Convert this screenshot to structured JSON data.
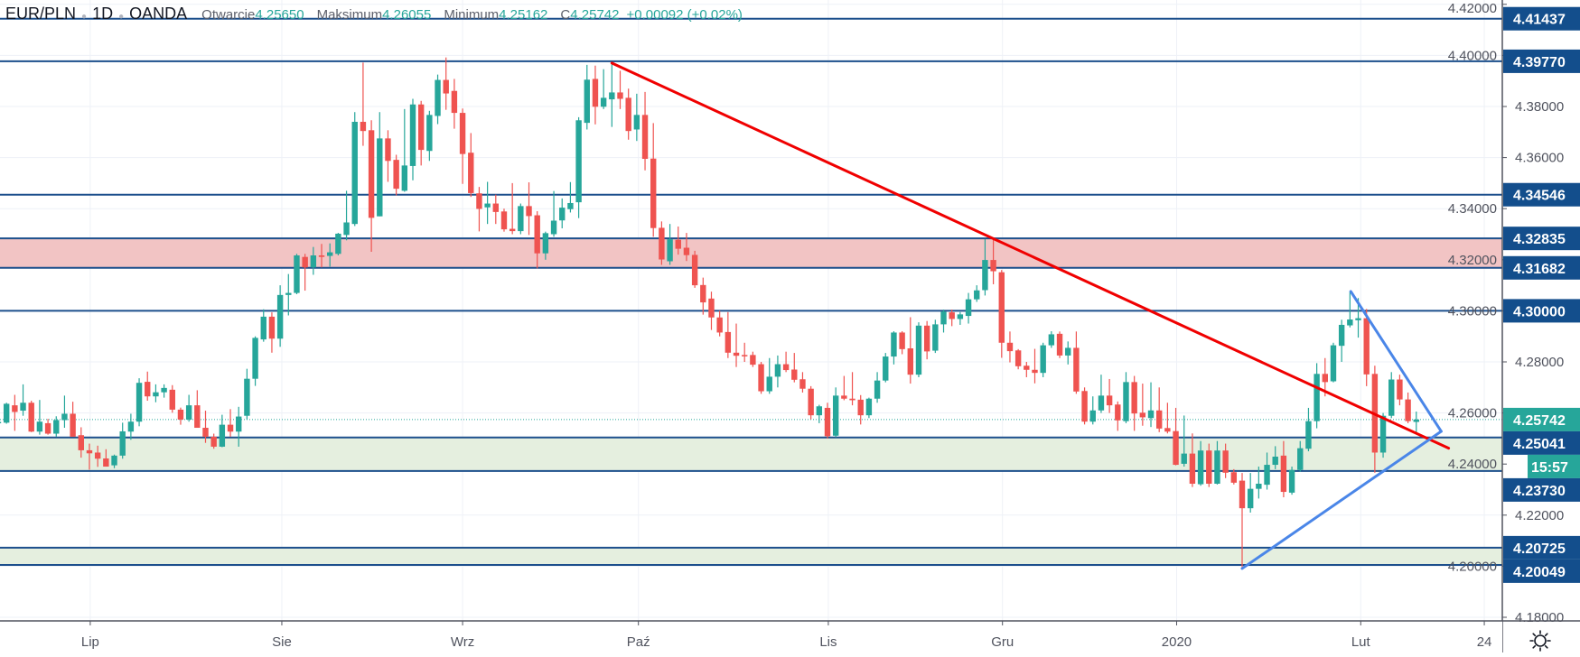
{
  "header": {
    "symbol": "EUR/PLN",
    "interval": "1D",
    "source": "OANDA",
    "open_label": "Otwarcie",
    "open": "4.25650",
    "high_label": "Maksimum",
    "high": "4.26055",
    "low_label": "Minimum",
    "low": "4.25162",
    "close_label": "C",
    "close": "4.25742",
    "change": "+0.00092 (+0.02%)"
  },
  "colors": {
    "up": "#26a69a",
    "down": "#ef5350",
    "level_line": "#1c4f8c",
    "level_label_bg": "#134e8c",
    "resistance_zone": "#f2c4c4",
    "support_zone": "#e5efdf",
    "trendline": "#f00000",
    "triangle": "#4a86e8",
    "grid": "#eef1f7"
  },
  "chart_data": {
    "type": "candlestick",
    "title": "EUR/PLN 1D OANDA",
    "ylim": [
      4.177,
      4.424
    ],
    "price_ticks": [
      "4.42000",
      "4.40000",
      "4.38000",
      "4.36000",
      "4.34000",
      "4.32000",
      "4.30000",
      "4.28000",
      "4.26000",
      "4.24000",
      "4.22000",
      "4.20000",
      "4.18000"
    ],
    "time_labels": [
      {
        "label": "Lip",
        "bar": 12.1
      },
      {
        "label": "Sie",
        "bar": 35.2
      },
      {
        "label": "Wrz",
        "bar": 57.0
      },
      {
        "label": "Paź",
        "bar": 78.2
      },
      {
        "label": "Lis",
        "bar": 101.1
      },
      {
        "label": "Gru",
        "bar": 122.1
      },
      {
        "label": "2020",
        "bar": 143.1
      },
      {
        "label": "Lut",
        "bar": 165.3
      },
      {
        "label": "24",
        "bar": 180.2
      }
    ],
    "levels": [
      "4.41437",
      "4.39770",
      "4.34546",
      "4.32835",
      "4.31682",
      "4.30000",
      "4.25041",
      "4.23730",
      "4.20725",
      "4.20049"
    ],
    "zones": [
      {
        "kind": "resistance",
        "from": 4.31682,
        "to": 4.32835
      },
      {
        "kind": "support",
        "from": 4.2373,
        "to": 4.25041
      },
      {
        "kind": "support",
        "from": 4.20049,
        "to": 4.20725
      }
    ],
    "current_price": "4.25742",
    "countdown": "15:57",
    "trendlines": [
      {
        "name": "downtrend",
        "color": "trendline",
        "points": [
          [
            75.0,
            4.397
          ],
          [
            175.9,
            4.2462
          ]
        ]
      },
      {
        "name": "triangle-lower",
        "color": "triangle",
        "points": [
          [
            151.0,
            4.1991
          ],
          [
            175.0,
            4.2528
          ]
        ]
      },
      {
        "name": "triangle-upper",
        "color": "triangle",
        "points": [
          [
            164.1,
            4.3076
          ],
          [
            175.0,
            4.2528
          ]
        ]
      }
    ],
    "ohlc_fields": [
      "open",
      "high",
      "low",
      "close"
    ],
    "ohlc": [
      [
        4.256,
        4.2575,
        4.2548,
        4.2565
      ],
      [
        4.2562,
        4.264,
        4.2558,
        4.2636
      ],
      [
        4.263,
        4.2671,
        4.253,
        4.2604
      ],
      [
        4.2609,
        4.2712,
        4.2589,
        4.264
      ],
      [
        4.264,
        4.2648,
        4.2525,
        4.2527
      ],
      [
        4.2527,
        4.2651,
        4.2515,
        4.2566
      ],
      [
        4.256,
        4.2577,
        4.2515,
        4.2519
      ],
      [
        4.2519,
        4.2587,
        4.2507,
        4.2572
      ],
      [
        4.2572,
        4.2668,
        4.2542,
        4.2597
      ],
      [
        4.2597,
        4.2644,
        4.2507,
        4.2507
      ],
      [
        4.2513,
        4.2544,
        4.2425,
        4.2454
      ],
      [
        4.2454,
        4.248,
        4.2378,
        4.2442
      ],
      [
        4.2445,
        4.2472,
        4.2389,
        4.2421
      ],
      [
        4.2422,
        4.2458,
        4.239,
        4.239
      ],
      [
        4.2395,
        4.2437,
        4.2384,
        4.2433
      ],
      [
        4.2433,
        4.2562,
        4.2421,
        4.2528
      ],
      [
        4.2527,
        4.2597,
        4.2495,
        4.2566
      ],
      [
        4.2566,
        4.2736,
        4.2548,
        4.2718
      ],
      [
        4.2722,
        4.2762,
        4.2648,
        4.2665
      ],
      [
        4.2665,
        4.2712,
        4.2642,
        4.2681
      ],
      [
        4.2681,
        4.2712,
        4.266,
        4.2698
      ],
      [
        4.2691,
        4.2709,
        4.2601,
        4.2613
      ],
      [
        4.2613,
        4.2621,
        4.2554,
        4.2574
      ],
      [
        4.2574,
        4.2671,
        4.2566,
        4.263
      ],
      [
        4.263,
        4.2689,
        4.2542,
        4.2542
      ],
      [
        4.2542,
        4.2609,
        4.2483,
        4.2507
      ],
      [
        4.2507,
        4.2519,
        4.246,
        4.2468
      ],
      [
        4.2468,
        4.2593,
        4.2466,
        4.2554
      ],
      [
        4.2554,
        4.2615,
        4.2507,
        4.2527
      ],
      [
        4.2527,
        4.2624,
        4.2468,
        4.2586
      ],
      [
        4.2589,
        4.2773,
        4.2574,
        4.2734
      ],
      [
        4.2734,
        4.29,
        4.2706,
        4.2894
      ],
      [
        4.2888,
        4.3006,
        4.2879,
        4.2977
      ],
      [
        4.2977,
        4.2994,
        4.2836,
        4.2891
      ],
      [
        4.2891,
        4.31,
        4.2859,
        4.3062
      ],
      [
        4.3062,
        4.3144,
        4.2982,
        4.307
      ],
      [
        4.307,
        4.3223,
        4.3065,
        4.3217
      ],
      [
        4.3211,
        4.3223,
        4.3079,
        4.317
      ],
      [
        4.317,
        4.325,
        4.3141,
        4.3217
      ],
      [
        4.3217,
        4.3262,
        4.317,
        4.3211
      ],
      [
        4.3215,
        4.3264,
        4.3173,
        4.3229
      ],
      [
        4.3223,
        4.3305,
        4.3217,
        4.3302
      ],
      [
        4.3297,
        4.347,
        4.3276,
        4.3346
      ],
      [
        4.334,
        4.3778,
        4.3332,
        4.374
      ],
      [
        4.374,
        4.3972,
        4.3646,
        4.3704
      ],
      [
        4.3707,
        4.3746,
        4.3231,
        4.3364
      ],
      [
        4.337,
        4.3778,
        4.337,
        4.3675
      ],
      [
        4.3675,
        4.3707,
        4.3505,
        4.3587
      ],
      [
        4.3591,
        4.3611,
        4.3452,
        4.3478
      ],
      [
        4.347,
        4.379,
        4.3466,
        4.3569
      ],
      [
        4.3567,
        4.383,
        4.3511,
        4.3808
      ],
      [
        4.3808,
        4.3822,
        4.3569,
        4.363
      ],
      [
        4.3626,
        4.3783,
        4.3587,
        4.3767
      ],
      [
        4.3763,
        4.3925,
        4.3731,
        4.3904
      ],
      [
        4.3904,
        4.3992,
        4.3787,
        4.3851
      ],
      [
        4.3861,
        4.3908,
        4.3713,
        4.3775
      ],
      [
        4.3775,
        4.3792,
        4.3497,
        4.3614
      ],
      [
        4.3619,
        4.3696,
        4.3446,
        4.3461
      ],
      [
        4.346,
        4.3485,
        4.3311,
        4.3399
      ],
      [
        4.3405,
        4.3505,
        4.334,
        4.342
      ],
      [
        4.342,
        4.3455,
        4.334,
        4.3387
      ],
      [
        4.3389,
        4.34,
        4.331,
        4.3319
      ],
      [
        4.3321,
        4.35,
        4.33,
        4.3312
      ],
      [
        4.3312,
        4.342,
        4.33,
        4.341
      ],
      [
        4.341,
        4.3503,
        4.3297,
        4.3371
      ],
      [
        4.3374,
        4.339,
        4.3166,
        4.3225
      ],
      [
        4.3225,
        4.331,
        4.32,
        4.3304
      ],
      [
        4.33,
        4.3469,
        4.329,
        4.3353
      ],
      [
        4.3354,
        4.344,
        4.3323,
        4.3404
      ],
      [
        4.3398,
        4.3504,
        4.3385,
        4.3422
      ],
      [
        4.3425,
        4.3758,
        4.3363,
        4.3746
      ],
      [
        4.3736,
        4.3963,
        4.371,
        4.3905
      ],
      [
        4.3908,
        4.396,
        4.373,
        4.3799
      ],
      [
        4.3799,
        4.3946,
        4.379,
        4.3834
      ],
      [
        4.3828,
        4.3969,
        4.372,
        4.3855
      ],
      [
        4.3855,
        4.394,
        4.379,
        4.383
      ],
      [
        4.3834,
        4.387,
        4.367,
        4.3704
      ],
      [
        4.371,
        4.385,
        4.3665,
        4.3767
      ],
      [
        4.3767,
        4.3857,
        4.355,
        4.3595
      ],
      [
        4.3596,
        4.3735,
        4.329,
        4.3324
      ],
      [
        4.3325,
        4.335,
        4.318,
        4.3201
      ],
      [
        4.3194,
        4.334,
        4.318,
        4.328
      ],
      [
        4.3278,
        4.333,
        4.322,
        4.3243
      ],
      [
        4.3247,
        4.3305,
        4.3195,
        4.3218
      ],
      [
        4.3219,
        4.3235,
        4.309,
        4.31
      ],
      [
        4.3101,
        4.313,
        4.2985,
        4.3033
      ],
      [
        4.3048,
        4.3075,
        4.2925,
        4.2974
      ],
      [
        4.2974,
        4.3,
        4.29,
        4.2915
      ],
      [
        4.2917,
        4.2995,
        4.2815,
        4.2836
      ],
      [
        4.2836,
        4.295,
        4.278,
        4.2824
      ],
      [
        4.2827,
        4.2875,
        4.28,
        4.2824
      ],
      [
        4.2827,
        4.284,
        4.278,
        4.2789
      ],
      [
        4.2791,
        4.28,
        4.2675,
        4.2685
      ],
      [
        4.2685,
        4.2815,
        4.2675,
        4.2742
      ],
      [
        4.2742,
        4.2825,
        4.27,
        4.2791
      ],
      [
        4.2791,
        4.284,
        4.276,
        4.2768
      ],
      [
        4.277,
        4.2835,
        4.272,
        4.273
      ],
      [
        4.2732,
        4.276,
        4.268,
        4.2695
      ],
      [
        4.2695,
        4.2705,
        4.2575,
        4.2591
      ],
      [
        4.2591,
        4.2632,
        4.256,
        4.2626
      ],
      [
        4.262,
        4.264,
        4.25,
        4.2509
      ],
      [
        4.2511,
        4.27,
        4.2505,
        4.2668
      ],
      [
        4.2668,
        4.2745,
        4.265,
        4.2656
      ],
      [
        4.2656,
        4.276,
        4.263,
        4.265
      ],
      [
        4.2652,
        4.267,
        4.2555,
        4.2591
      ],
      [
        4.2591,
        4.266,
        4.258,
        4.2656
      ],
      [
        4.2656,
        4.276,
        4.264,
        4.2727
      ],
      [
        4.2727,
        4.2835,
        4.272,
        4.2821
      ],
      [
        4.2821,
        4.292,
        4.279,
        4.2915
      ],
      [
        4.2915,
        4.292,
        4.283,
        4.285
      ],
      [
        4.2853,
        4.2975,
        4.2715,
        4.275
      ],
      [
        4.275,
        4.2955,
        4.274,
        4.2942
      ],
      [
        4.2942,
        4.296,
        4.281,
        4.2841
      ],
      [
        4.2844,
        4.2965,
        4.2835,
        4.2947
      ],
      [
        4.2947,
        4.3005,
        4.2915,
        4.2997
      ],
      [
        4.2994,
        4.3005,
        4.294,
        4.2968
      ],
      [
        4.2968,
        4.2995,
        4.2945,
        4.2986
      ],
      [
        4.298,
        4.307,
        4.295,
        4.3045
      ],
      [
        4.3045,
        4.31,
        4.3035,
        4.308
      ],
      [
        4.3081,
        4.3281,
        4.306,
        4.3199
      ],
      [
        4.3199,
        4.3281,
        4.3104,
        4.3155
      ],
      [
        4.3151,
        4.316,
        4.2816,
        4.2875
      ],
      [
        4.2875,
        4.2919,
        4.2798,
        4.2842
      ],
      [
        4.2845,
        4.285,
        4.2771,
        4.2783
      ],
      [
        4.2785,
        4.28,
        4.274,
        4.2769
      ],
      [
        4.2769,
        4.2851,
        4.2716,
        4.2757
      ],
      [
        4.2757,
        4.2875,
        4.274,
        4.2865
      ],
      [
        4.2865,
        4.292,
        4.2855,
        4.2908
      ],
      [
        4.291,
        4.2919,
        4.2815,
        4.2825
      ],
      [
        4.2825,
        4.288,
        4.279,
        4.2855
      ],
      [
        4.2855,
        4.2919,
        4.2675,
        4.2684
      ],
      [
        4.2686,
        4.27,
        4.2555,
        4.2566
      ],
      [
        4.2566,
        4.2665,
        4.2555,
        4.261
      ],
      [
        4.261,
        4.275,
        4.26,
        4.2668
      ],
      [
        4.2668,
        4.2733,
        4.26,
        4.263
      ],
      [
        4.2633,
        4.2645,
        4.253,
        4.2571
      ],
      [
        4.2568,
        4.276,
        4.256,
        4.2721
      ],
      [
        4.2721,
        4.2745,
        4.253,
        4.2598
      ],
      [
        4.2601,
        4.2715,
        4.255,
        4.2583
      ],
      [
        4.258,
        4.272,
        4.2545,
        4.261
      ],
      [
        4.261,
        4.27,
        4.2525,
        4.2539
      ],
      [
        4.2541,
        4.264,
        4.252,
        4.2527
      ],
      [
        4.2529,
        4.262,
        4.2395,
        4.2397
      ],
      [
        4.2401,
        4.259,
        4.239,
        4.2441
      ],
      [
        4.2441,
        4.252,
        4.231,
        4.2323
      ],
      [
        4.2321,
        4.249,
        4.2315,
        4.2453
      ],
      [
        4.2453,
        4.248,
        4.231,
        4.2323
      ],
      [
        4.2323,
        4.249,
        4.232,
        4.2453
      ],
      [
        4.2453,
        4.248,
        4.2345,
        4.2366
      ],
      [
        4.2368,
        4.238,
        4.232,
        4.2327
      ],
      [
        4.2335,
        4.2365,
        4.1991,
        4.2227
      ],
      [
        4.2227,
        4.2365,
        4.221,
        4.2303
      ],
      [
        4.2303,
        4.239,
        4.2265,
        4.2323
      ],
      [
        4.2319,
        4.2445,
        4.23,
        4.2397
      ],
      [
        4.2397,
        4.247,
        4.238,
        4.2429
      ],
      [
        4.2433,
        4.249,
        4.227,
        4.2291
      ],
      [
        4.2288,
        4.239,
        4.228,
        4.2377
      ],
      [
        4.2377,
        4.249,
        4.237,
        4.2462
      ],
      [
        4.246,
        4.262,
        4.245,
        4.2568
      ],
      [
        4.2568,
        4.2795,
        4.254,
        4.2753
      ],
      [
        4.2753,
        4.2815,
        4.2665,
        4.2721
      ],
      [
        4.2724,
        4.2875,
        4.272,
        4.2865
      ],
      [
        4.2863,
        4.2965,
        4.28,
        4.2945
      ],
      [
        4.2943,
        4.3075,
        4.2935,
        4.2966
      ],
      [
        4.2963,
        4.305,
        4.2895,
        4.2971
      ],
      [
        4.2971,
        4.3007,
        4.2705,
        4.2751
      ],
      [
        4.2753,
        4.2785,
        4.2366,
        4.2445
      ],
      [
        4.2445,
        4.26,
        4.2425,
        4.2589
      ],
      [
        4.2589,
        4.276,
        4.258,
        4.2731
      ],
      [
        4.2731,
        4.275,
        4.263,
        4.2653
      ],
      [
        4.2653,
        4.268,
        4.256,
        4.2568
      ],
      [
        4.2565,
        4.26055,
        4.25162,
        4.25742
      ]
    ]
  },
  "toolbar": {
    "settings_icon": "gear-icon"
  }
}
